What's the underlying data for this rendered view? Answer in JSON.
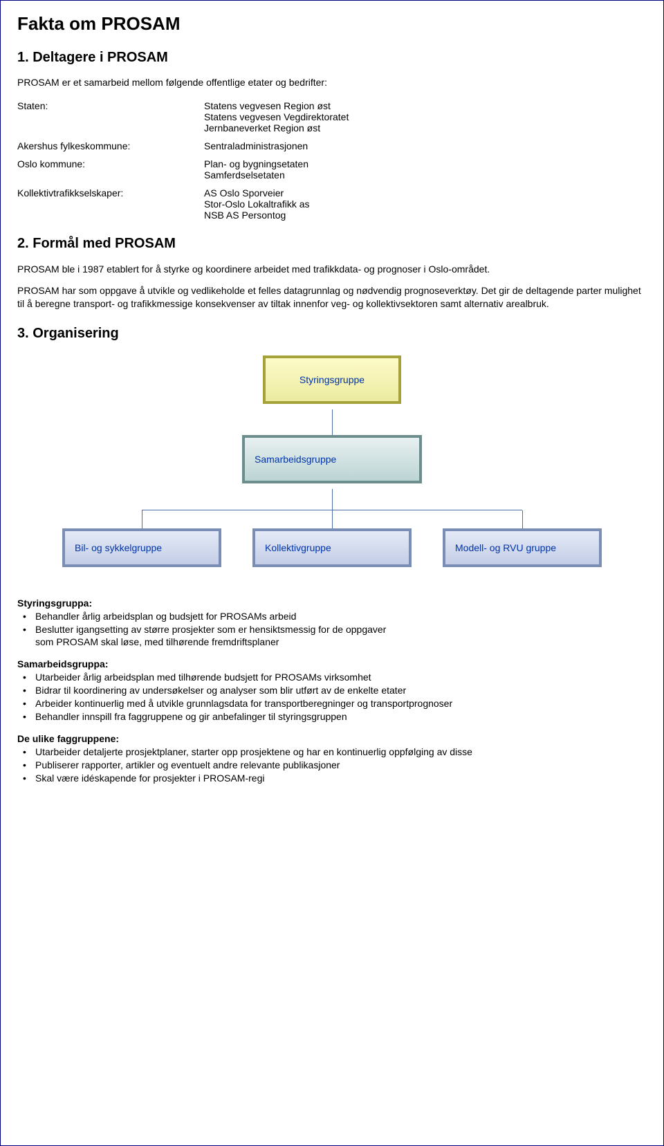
{
  "title": "Fakta om PROSAM",
  "section1": {
    "heading": "1. Deltagere i PROSAM",
    "intro": "PROSAM er et samarbeid mellom følgende offentlige etater og bedrifter:",
    "rows": [
      {
        "left": "Staten:",
        "right": [
          "Statens vegvesen Region øst",
          "Statens vegvesen Vegdirektoratet",
          "Jernbaneverket Region øst"
        ]
      },
      {
        "left": "Akershus fylkeskommune:",
        "right": [
          "Sentraladministrasjonen"
        ]
      },
      {
        "left": "Oslo kommune:",
        "right": [
          "Plan- og bygningsetaten",
          "Samferdselsetaten"
        ]
      },
      {
        "left": "Kollektivtrafikkselskaper:",
        "right": [
          "AS Oslo Sporveier",
          "Stor-Oslo Lokaltrafikk as",
          "NSB AS Persontog"
        ]
      }
    ]
  },
  "section2": {
    "heading": "2. Formål med PROSAM",
    "p1": "PROSAM ble i 1987 etablert for å styrke og koordinere arbeidet med trafikkdata- og prognoser i Oslo-området.",
    "p2": "PROSAM har som oppgave å utvikle og vedlikeholde et felles datagrunnlag og nødvendig prognoseverktøy. Det gir de deltagende parter mulighet til å beregne transport- og trafikkmessige konsekvenser av tiltak innenfor veg- og kollektivsektoren samt alternativ arealbruk."
  },
  "section3": {
    "heading": "3. Organisering",
    "chart": {
      "top": {
        "label": "Styringsgruppe",
        "border_color": "#a6a23a",
        "bg_top": "#fdfbc9",
        "bg_bot": "#eceba0"
      },
      "mid": {
        "label": "Samarbeidsgruppe",
        "border_color": "#6b8d8d",
        "bg_top": "#e8f0f0",
        "bg_bot": "#bcd4d4"
      },
      "bottom": [
        {
          "label": "Bil- og sykkelgruppe"
        },
        {
          "label": "Kollektivgruppe"
        },
        {
          "label": "Modell- og RVU gruppe"
        }
      ],
      "bottom_style": {
        "border_color": "#7a8db5",
        "bg_top": "#e4eaf6",
        "bg_bot": "#c3cde6"
      },
      "text_color": "#0033aa",
      "connector_color": "#4b6ca6"
    },
    "groups": [
      {
        "heading": "Styringsgruppa:",
        "items": [
          "Behandler årlig arbeidsplan og budsjett for PROSAMs arbeid",
          "Beslutter igangsetting av større prosjekter som er hensiktsmessig for de oppgaver",
          "som PROSAM skal løse, med tilhørende fremdriftsplaner"
        ],
        "indent_flags": [
          false,
          false,
          true
        ]
      },
      {
        "heading": "Samarbeidsgruppa:",
        "items": [
          "Utarbeider årlig arbeidsplan med tilhørende budsjett for PROSAMs virksomhet",
          "Bidrar til koordinering av undersøkelser og analyser som blir utført av de enkelte etater",
          "Arbeider kontinuerlig med å utvikle grunnlagsdata for transportberegninger og transportprognoser",
          "Behandler innspill fra faggruppene og gir anbefalinger til styringsgruppen"
        ],
        "indent_flags": [
          false,
          false,
          false,
          false
        ]
      },
      {
        "heading": "De ulike faggruppene:",
        "items": [
          "Utarbeider detaljerte prosjektplaner, starter opp prosjektene og har en kontinuerlig oppfølging av disse",
          "Publiserer rapporter, artikler og eventuelt andre relevante publikasjoner",
          "Skal være idéskapende for prosjekter i PROSAM-regi"
        ],
        "indent_flags": [
          false,
          false,
          false
        ]
      }
    ]
  },
  "page_border_color": "#000080",
  "body_font": "Arial"
}
